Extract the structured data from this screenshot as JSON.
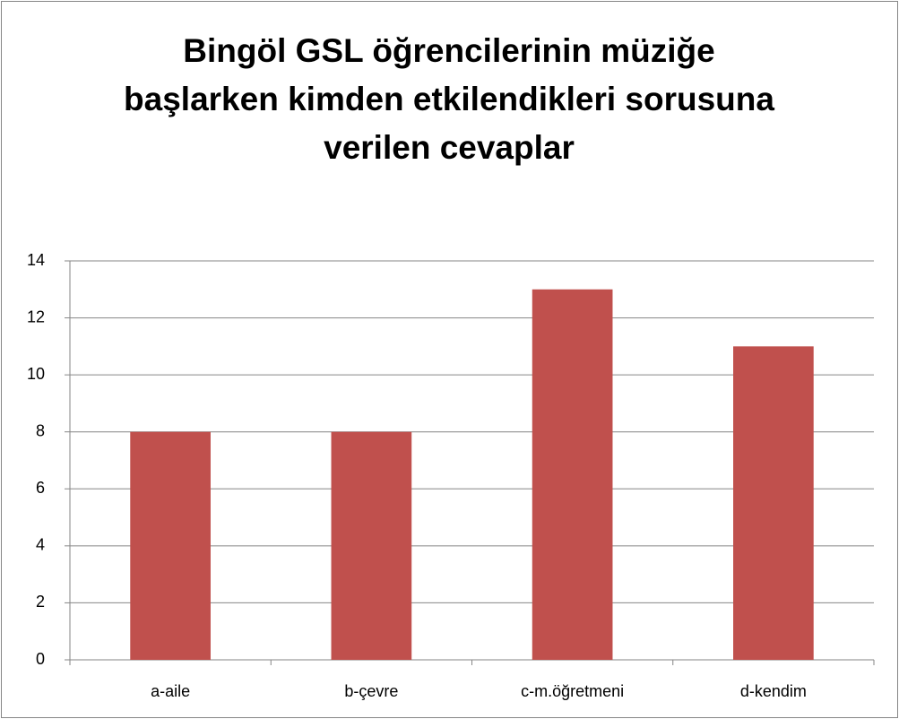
{
  "chart_data": {
    "type": "bar",
    "title": "Bingöl GSL öğrencilerinin müziğe başlarken kimden etkilendikleri sorusuna verilen cevaplar",
    "categories": [
      "a-aile",
      "b-çevre",
      "c-m.öğretmeni",
      "d-kendim"
    ],
    "values": [
      8,
      8,
      13,
      11
    ],
    "color": "#c0504d",
    "ylim": [
      0,
      14
    ],
    "yticks": [
      0,
      2,
      4,
      6,
      8,
      10,
      12,
      14
    ],
    "grid": true
  }
}
